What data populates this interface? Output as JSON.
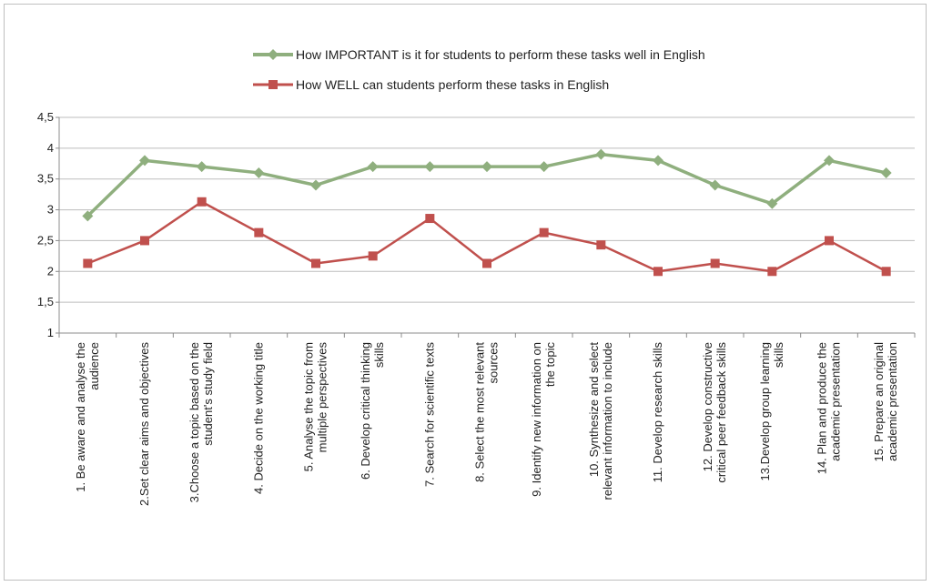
{
  "chart_data": {
    "type": "line",
    "categories": [
      [
        "1. Be aware and analyse the",
        "audience"
      ],
      [
        "2.Set clear aims and objectives"
      ],
      [
        "3.Choose a topic based on the",
        "student's study field"
      ],
      [
        "4. Decide on the working title"
      ],
      [
        "5. Analyse the topic from",
        "multiple perspectives"
      ],
      [
        "6. Develop critical thinking",
        "skills"
      ],
      [
        "7. Search for scientific texts"
      ],
      [
        "8. Select the most relevant",
        "sources"
      ],
      [
        "9. Identify new information on",
        "the topic"
      ],
      [
        "10. Synthesize and select",
        "relevant information to include"
      ],
      [
        "11. Develop research skills"
      ],
      [
        "12. Develop constructive",
        "critical peer feedback skills"
      ],
      [
        "13.Develop group learning",
        "skills"
      ],
      [
        "14. Plan and produce the",
        "academic presentation"
      ],
      [
        "15. Prepare an original",
        "academic presentation"
      ]
    ],
    "series": [
      {
        "name": "How IMPORTANT is it for students  to perform these tasks well in English",
        "color": "#8faf7e",
        "marker": "diamond",
        "values": [
          2.9,
          3.8,
          3.7,
          3.6,
          3.4,
          3.7,
          3.7,
          3.7,
          3.7,
          3.9,
          3.8,
          3.4,
          3.1,
          3.8,
          3.6
        ]
      },
      {
        "name": "How WELL can students perform these tasks in English",
        "color": "#c0504d",
        "marker": "square",
        "values": [
          2.13,
          2.5,
          3.13,
          2.63,
          2.13,
          2.25,
          2.86,
          2.13,
          2.63,
          2.43,
          2.0,
          2.13,
          2.0,
          2.5,
          2.0
        ]
      }
    ],
    "ylim": [
      1,
      4.5
    ],
    "yticks": [
      "1",
      "1,5",
      "2",
      "2,5",
      "3",
      "3,5",
      "4",
      "4,5"
    ],
    "grid": true,
    "legend": "top-center",
    "title": "",
    "xlabel": "",
    "ylabel": ""
  }
}
